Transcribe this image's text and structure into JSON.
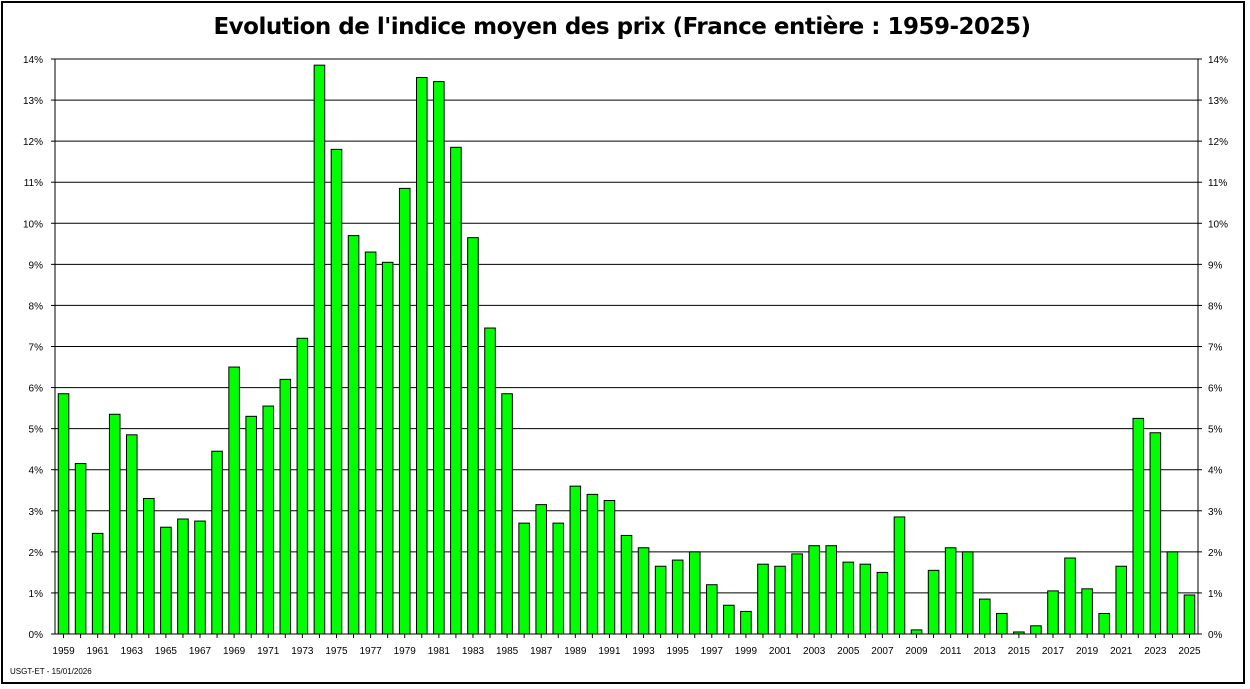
{
  "chart_data": {
    "type": "bar",
    "title": "Evolution de l'indice moyen des prix (France entière : 1959-2025)",
    "xlabel": "",
    "ylabel": "",
    "ylim": [
      0,
      14
    ],
    "y_ticks": [
      "0%",
      "1%",
      "2%",
      "3%",
      "4%",
      "5%",
      "6%",
      "7%",
      "8%",
      "9%",
      "10%",
      "11%",
      "12%",
      "13%",
      "14%"
    ],
    "grid": true,
    "legend": "none",
    "bar_color": "#00ff00",
    "x_tick_labels": [
      "1959",
      "1961",
      "1963",
      "1965",
      "1967",
      "1969",
      "1971",
      "1973",
      "1975",
      "1977",
      "1979",
      "1981",
      "1983",
      "1985",
      "1987",
      "1989",
      "1991",
      "1993",
      "1995",
      "1997",
      "1999",
      "2001",
      "2003",
      "2005",
      "2007",
      "2009",
      "2011",
      "2013",
      "2015",
      "2017",
      "2019",
      "2021",
      "2023",
      "2025"
    ],
    "categories": [
      "1959",
      "1960",
      "1961",
      "1962",
      "1963",
      "1964",
      "1965",
      "1966",
      "1967",
      "1968",
      "1969",
      "1970",
      "1971",
      "1972",
      "1973",
      "1974",
      "1975",
      "1976",
      "1977",
      "1978",
      "1979",
      "1980",
      "1981",
      "1982",
      "1983",
      "1984",
      "1985",
      "1986",
      "1987",
      "1988",
      "1989",
      "1990",
      "1991",
      "1992",
      "1993",
      "1994",
      "1995",
      "1996",
      "1997",
      "1998",
      "1999",
      "2000",
      "2001",
      "2002",
      "2003",
      "2004",
      "2005",
      "2006",
      "2007",
      "2008",
      "2009",
      "2010",
      "2011",
      "2012",
      "2013",
      "2014",
      "2015",
      "2016",
      "2017",
      "2018",
      "2019",
      "2020",
      "2021",
      "2022",
      "2023",
      "2024",
      "2025"
    ],
    "values": [
      5.85,
      4.15,
      2.45,
      5.35,
      4.85,
      3.3,
      2.6,
      2.8,
      2.75,
      4.45,
      6.5,
      5.3,
      5.55,
      6.2,
      7.2,
      13.85,
      11.8,
      9.7,
      9.3,
      9.05,
      10.85,
      13.55,
      13.45,
      11.85,
      9.65,
      7.45,
      5.85,
      2.7,
      3.15,
      2.7,
      3.6,
      3.4,
      3.25,
      2.4,
      2.1,
      1.65,
      1.8,
      2.0,
      1.2,
      0.7,
      0.55,
      1.7,
      1.65,
      1.95,
      2.15,
      2.15,
      1.75,
      1.7,
      1.5,
      2.85,
      0.1,
      1.55,
      2.1,
      2.0,
      0.85,
      0.5,
      0.05,
      0.2,
      1.05,
      1.85,
      1.1,
      0.5,
      1.65,
      5.25,
      4.9,
      2.0,
      0.95
    ]
  },
  "footer": "USGT-ET - 15/01/2026"
}
